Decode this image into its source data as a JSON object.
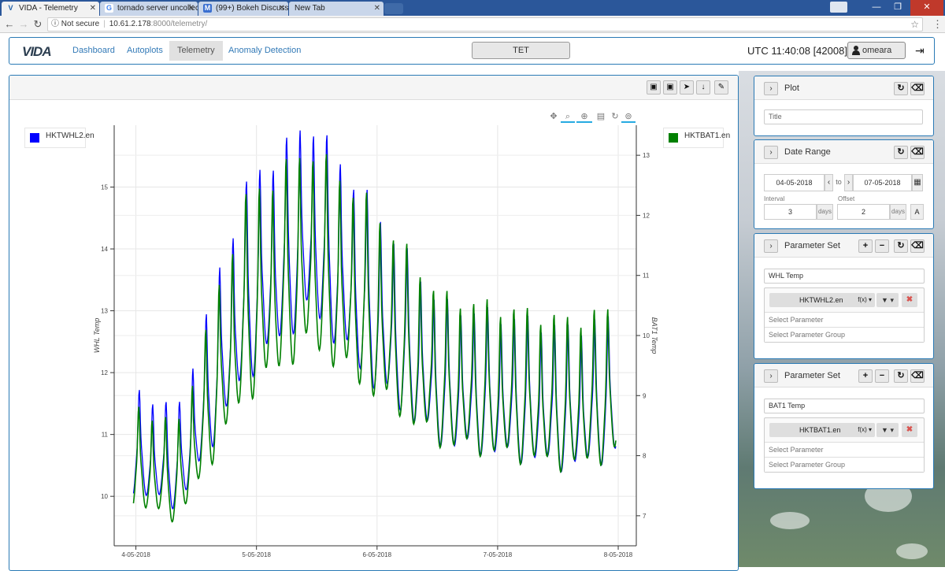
{
  "browser": {
    "tabs": [
      {
        "label": "VIDA - Telemetry",
        "fav": "V",
        "active": true
      },
      {
        "label": "tornado server uncollecte",
        "fav": "G",
        "active": false
      },
      {
        "label": "(99+) Bokeh Discussion",
        "fav": "M",
        "active": false
      },
      {
        "label": "New Tab",
        "fav": "",
        "active": false
      }
    ],
    "security": "Not secure",
    "url_host": "10.61.2.178",
    "url_path": ":8000/telemetry/"
  },
  "nav": {
    "logo": "VIDA",
    "links": [
      "Dashboard",
      "Autoplots",
      "Telemetry",
      "Anomaly Detection"
    ],
    "active_link": "Telemetry",
    "mission": "TET",
    "utc": "UTC 11:40:08 [42008]",
    "user": "omeara"
  },
  "plot": {
    "legend_left": "HKTWHL2.en",
    "legend_right": "HKTBAT1.en",
    "colors": {
      "left": "#0000ff",
      "right": "#008000"
    }
  },
  "chart_data": {
    "type": "line",
    "x": [
      "4-05-2018",
      "5-05-2018",
      "6-05-2018",
      "7-05-2018",
      "8-05-2018"
    ],
    "xlabel": "",
    "y_left": {
      "label": "WHL Temp",
      "lim": [
        9.2,
        16.0
      ],
      "ticks": [
        10,
        11,
        12,
        13,
        14,
        15
      ]
    },
    "y_right": {
      "label": "BAT1 Temp",
      "lim": [
        6.5,
        13.5
      ],
      "ticks": [
        7,
        8,
        9,
        10,
        11,
        12,
        13
      ]
    },
    "x_range_days": [
      -0.18,
      4.15
    ],
    "series": [
      {
        "name": "HKTWHL2.en",
        "axis": "left",
        "color": "#0000ff",
        "daily_mean": [
          10.6,
          10.3,
          12.8,
          13.9,
          12.6,
          11.5,
          11.3,
          11.1,
          11.4
        ],
        "amplitude": [
          0.8,
          0.8,
          1.5,
          1.5,
          1.4,
          1.1,
          1.1,
          1.1,
          1.1
        ]
      },
      {
        "name": "HKTBAT1.en",
        "axis": "right",
        "color": "#008000",
        "daily_mean": [
          7.7,
          7.4,
          9.9,
          10.8,
          9.9,
          8.9,
          8.7,
          8.5,
          8.8
        ],
        "amplitude": [
          0.8,
          0.8,
          1.6,
          1.6,
          1.5,
          1.2,
          1.2,
          1.2,
          1.2
        ]
      }
    ]
  },
  "sidebar": {
    "plot_card": {
      "title": "Plot",
      "title_placeholder": "Title"
    },
    "date_card": {
      "title": "Date Range",
      "from": "04-05-2018",
      "to_label": "to",
      "to": "07-05-2018",
      "interval_label": "Interval",
      "interval": "3",
      "interval_unit": "days",
      "offset_label": "Offset",
      "offset": "2",
      "offset_unit": "days",
      "auto_label": "A"
    },
    "param_sets": [
      {
        "title": "Parameter Set",
        "name": "WHL Temp",
        "param": "HKTWHL2.en",
        "fx": "f(x) ▾",
        "select_param": "Select Parameter",
        "select_group": "Select Parameter Group"
      },
      {
        "title": "Parameter Set",
        "name": "BAT1 Temp",
        "param": "HKTBAT1.en",
        "fx": "f(x) ▾",
        "select_param": "Select Parameter",
        "select_group": "Select Parameter Group"
      }
    ]
  }
}
